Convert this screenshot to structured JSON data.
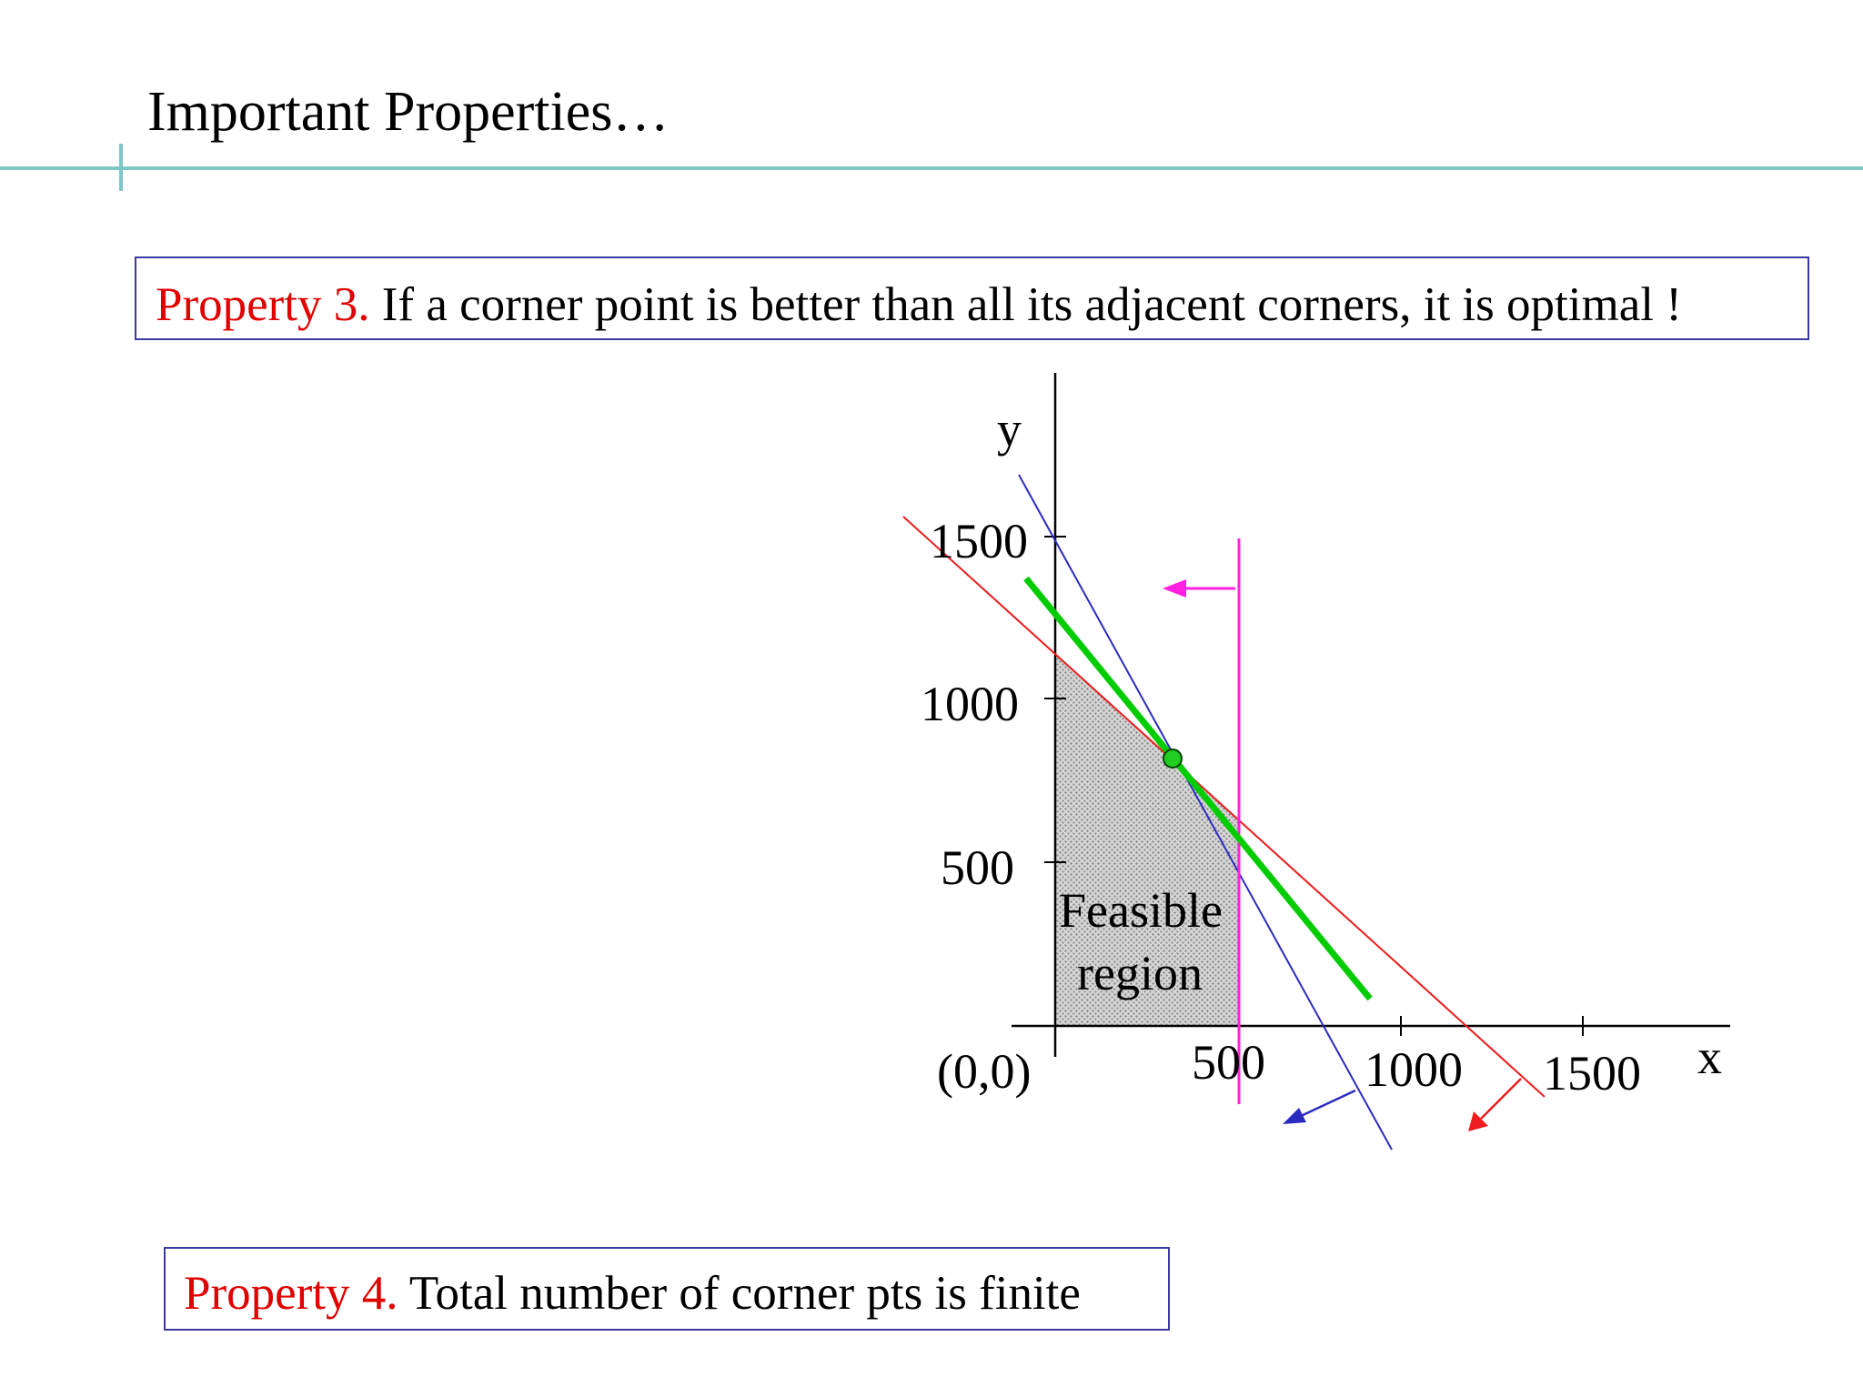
{
  "slide": {
    "title": "Important Properties…"
  },
  "property3": {
    "label": "Property 3.",
    "text": " If a corner point is better than all its adjacent corners, it is optimal !"
  },
  "property4": {
    "label": "Property 4.",
    "text": " Total number of corner pts is finite"
  },
  "diagram": {
    "x_axis_label": "x",
    "y_axis_label": "y",
    "origin_label": "(0,0)",
    "x_ticks": [
      "500",
      "1000",
      "1500"
    ],
    "y_ticks": [
      "500",
      "1000",
      "1500"
    ],
    "region_label_line1": "Feasible",
    "region_label_line2": "region",
    "colors": {
      "red_constraint": "#ee1c1c",
      "blue_constraint": "#2b2bbf",
      "magenta_constraint": "#ff20e0",
      "objective_line": "#00cc00",
      "region_fill": "#c8c8c8"
    }
  }
}
